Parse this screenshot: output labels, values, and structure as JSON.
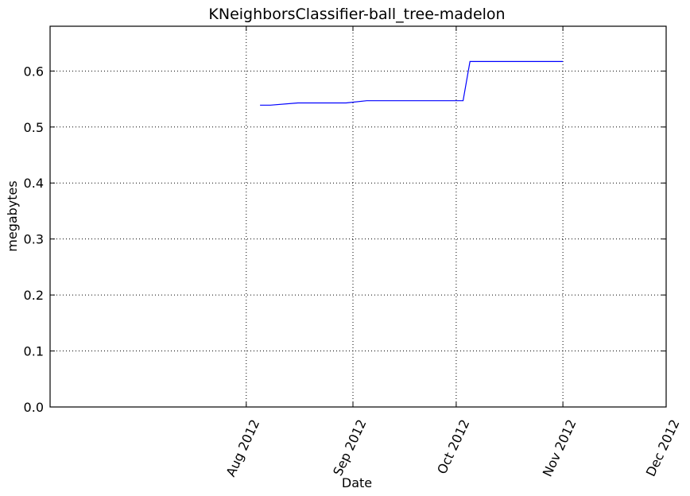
{
  "chart_data": {
    "type": "line",
    "title": "KNeighborsClassifier-ball_tree-madelon",
    "xlabel": "Date",
    "ylabel": "megabytes",
    "xlim": [
      "2012-06-05",
      "2012-12-01"
    ],
    "ylim": [
      0,
      0.68
    ],
    "grid": true,
    "x_ticks": [
      {
        "date": "2012-08-01",
        "label": "Aug 2012"
      },
      {
        "date": "2012-09-01",
        "label": "Sep 2012"
      },
      {
        "date": "2012-10-01",
        "label": "Oct 2012"
      },
      {
        "date": "2012-11-01",
        "label": "Nov 2012"
      },
      {
        "date": "2012-12-01",
        "label": "Dec 2012"
      }
    ],
    "y_ticks": [
      {
        "value": 0.0,
        "label": "0.0"
      },
      {
        "value": 0.1,
        "label": "0.1"
      },
      {
        "value": 0.2,
        "label": "0.2"
      },
      {
        "value": 0.3,
        "label": "0.3"
      },
      {
        "value": 0.4,
        "label": "0.4"
      },
      {
        "value": 0.5,
        "label": "0.5"
      },
      {
        "value": 0.6,
        "label": "0.6"
      }
    ],
    "series": [
      {
        "color": "#0000ff",
        "points": [
          {
            "x": "2012-08-05",
            "y": 0.539
          },
          {
            "x": "2012-08-08",
            "y": 0.539
          },
          {
            "x": "2012-08-16",
            "y": 0.543
          },
          {
            "x": "2012-08-30",
            "y": 0.543
          },
          {
            "x": "2012-09-05",
            "y": 0.547
          },
          {
            "x": "2012-10-03",
            "y": 0.547
          },
          {
            "x": "2012-10-05",
            "y": 0.617
          },
          {
            "x": "2012-11-01",
            "y": 0.617
          }
        ]
      }
    ]
  }
}
